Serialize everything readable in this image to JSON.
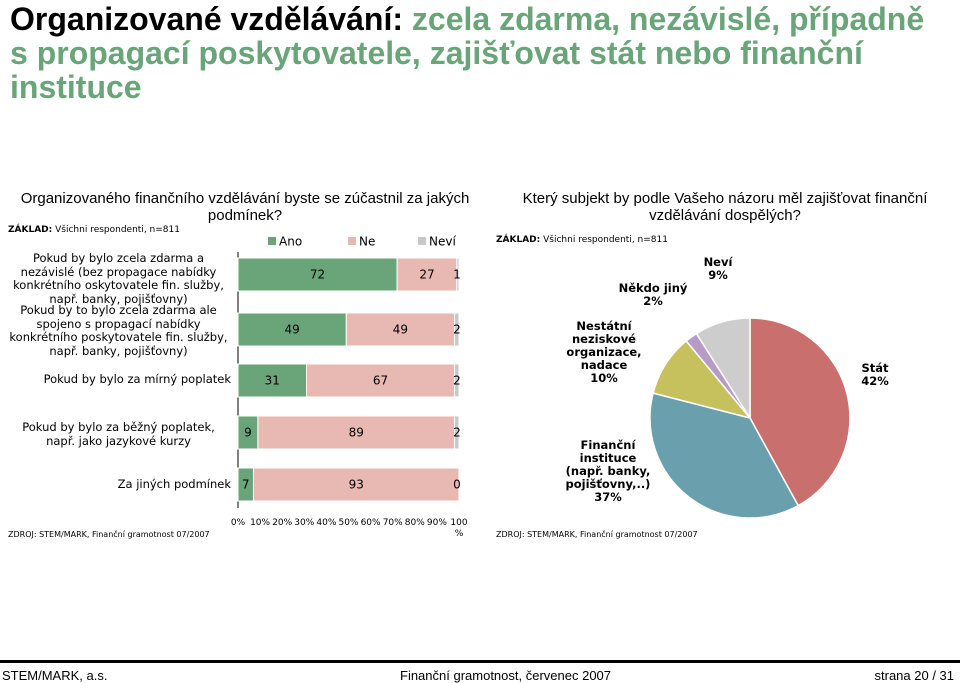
{
  "title": {
    "part1": "Organizované vzdělávání:",
    "part2": " zcela zdarma, nezávislé, případně s propagací poskytovatele, zajišťovat stát nebo finanční instituce"
  },
  "left": {
    "title": "Organizovaného finančního vzdělávání byste se zúčastnil za jakých podmínek?",
    "base_label": "ZÁKLAD:",
    "base_text": "Všichni respondenti, n=811",
    "source": "ZDROJ: STEM/MARK, Finanční gramotnost 07/2007"
  },
  "right": {
    "title": "Který subjekt by podle Vašeho názoru měl zajišťovat finanční vzdělávání dospělých?",
    "base_label": "ZÁKLAD:",
    "base_text": "Všichni respondenti, n=811",
    "source": "ZDROJ: STEM/MARK, Finanční gramotnost 07/2007"
  },
  "colors": {
    "title_green": "#6aa57a",
    "ano": "#6aa57a",
    "ne": "#e8b9b2",
    "nevi": "#c8c8c8",
    "stat": "#c96f6d",
    "financni": "#6aa0ae",
    "nestatni": "#c6c15d",
    "nekdo": "#b79bc6",
    "nevi_pie": "#cdcdcd"
  },
  "chart_data": [
    {
      "type": "bar",
      "orientation": "horizontal",
      "stacked": true,
      "categories": [
        "Pokud by bylo zcela zdarma a nezávislé (bez propagace nabídky konkrétního oskytovatele fin. služby, např. banky, pojišťovny)",
        "Pokud by to bylo zcela zdarma ale spojeno s propagací nabídky konkrétního poskytovatele fin. služby, např. banky, pojišťovny)",
        "Pokud by bylo za mírný poplatek",
        "Pokud by bylo za běžný poplatek, např. jako jazykové kurzy",
        "Za jiných podmínek"
      ],
      "series": [
        {
          "name": "Ano",
          "values": [
            72,
            49,
            31,
            9,
            7
          ]
        },
        {
          "name": "Ne",
          "values": [
            27,
            49,
            67,
            89,
            93
          ]
        },
        {
          "name": "Neví",
          "values": [
            1,
            2,
            2,
            2,
            0
          ]
        }
      ],
      "xticks": [
        "0%",
        "10%",
        "20%",
        "30%",
        "40%",
        "50%",
        "60%",
        "70%",
        "80%",
        "90%",
        "100 %"
      ],
      "xlim": [
        0,
        100
      ],
      "legend": "top"
    },
    {
      "type": "pie",
      "slices": [
        {
          "label": "Stát",
          "value": 42,
          "text": "42%"
        },
        {
          "label": "Finanční instituce (např. banky, pojišťovny,..)",
          "value": 37,
          "text": "37%"
        },
        {
          "label": "Nestátní neziskové organizace, nadace",
          "value": 10,
          "text": "10%"
        },
        {
          "label": "Někdo jiný",
          "value": 2,
          "text": "2%"
        },
        {
          "label": "Neví",
          "value": 9,
          "text": "9%"
        }
      ]
    }
  ],
  "footer": {
    "left": "STEM/MARK, a.s.",
    "center": "Finanční gramotnost, červenec 2007",
    "right": "strana 20 / 31"
  }
}
